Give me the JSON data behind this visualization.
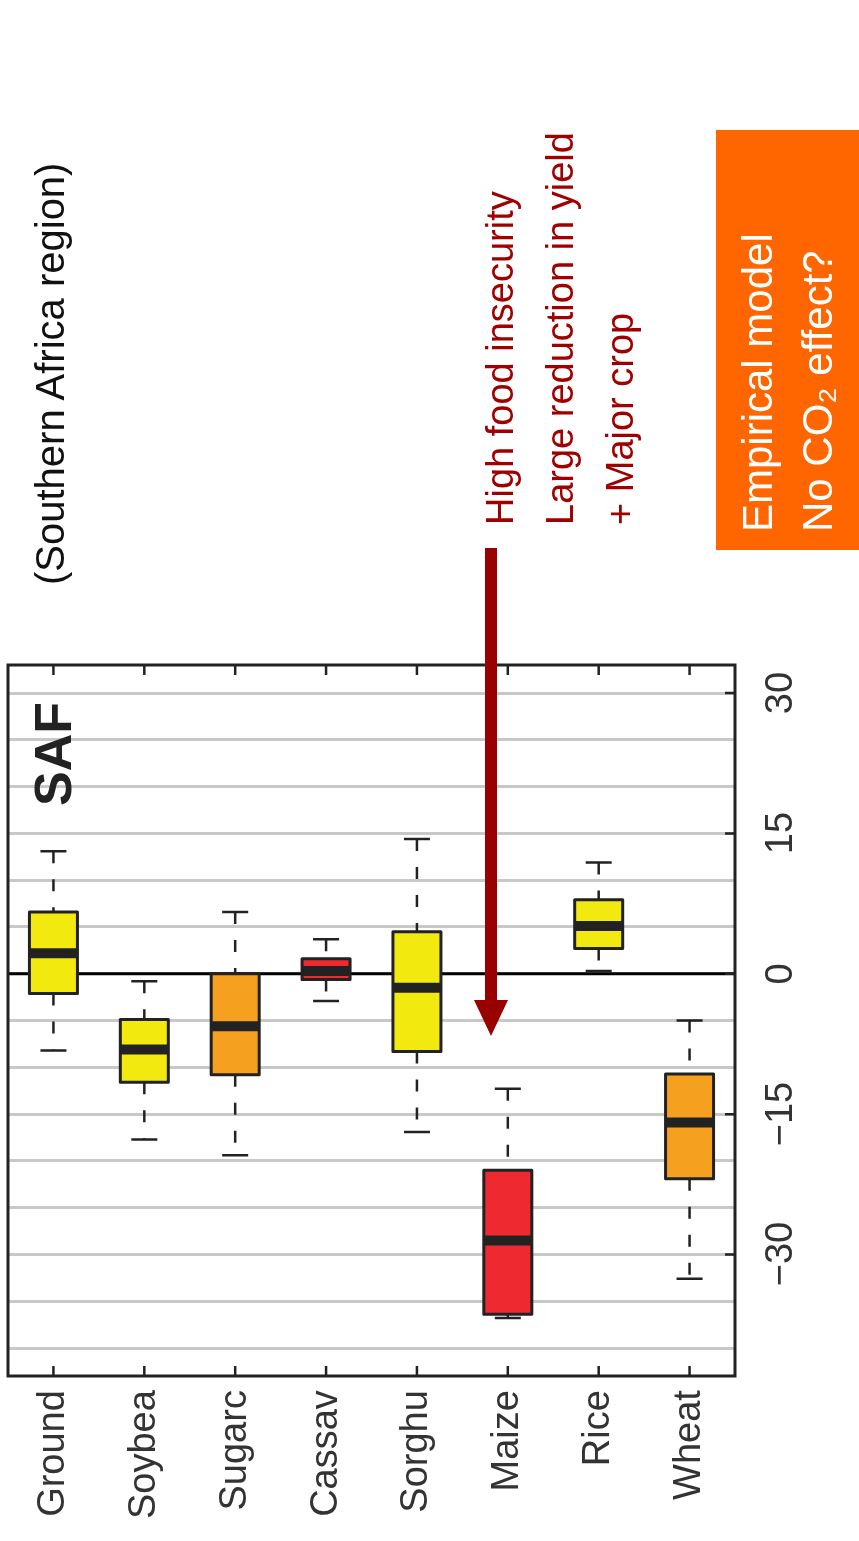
{
  "chart_data": {
    "type": "box",
    "title": "(Southern Africa region)",
    "annotations": [
      "SAF",
      "High food insecurity\nLarge reduction in yield\n+ Major crop",
      "Empirical model\nNo CO₂ effect?"
    ],
    "categories": [
      "Ground",
      "Soybea",
      "Sugarc",
      "Cassav",
      "Sorghu",
      "Maize",
      "Rice",
      "Wheat"
    ],
    "colors": [
      "#f2ea0f",
      "#f2ea0f",
      "#f5a01e",
      "#ee2a30",
      "#f2ea0f",
      "#ee2a30",
      "#f2ea0f",
      "#f5a01e"
    ],
    "boxes": [
      {
        "low": -8.2,
        "q1": -2.1,
        "median": 2.2,
        "q3": 6.6,
        "high": 13.1
      },
      {
        "low": -17.7,
        "q1": -11.6,
        "median": -8.1,
        "q3": -4.9,
        "high": -0.8
      },
      {
        "low": -19.4,
        "q1": -10.8,
        "median": -5.6,
        "q3": 0,
        "high": 6.6
      },
      {
        "low": -2.9,
        "q1": -0.6,
        "median": 0.3,
        "q3": 1.6,
        "high": 3.7
      },
      {
        "low": -16.9,
        "q1": -8.3,
        "median": -1.5,
        "q3": 4.5,
        "high": 14.4
      },
      {
        "low": -36.8,
        "q1": -36.4,
        "median": -28.5,
        "q3": -21,
        "high": -12.3
      },
      {
        "low": 0.3,
        "q1": 2.7,
        "median": 5.1,
        "q3": 7.9,
        "high": 11.9
      },
      {
        "low": -32.6,
        "q1": -21.9,
        "median": -15.9,
        "q3": -10.7,
        "high": -5
      }
    ],
    "ylim": [
      -43,
      33
    ],
    "yticks": [
      {
        "value": -40,
        "label": null
      },
      {
        "value": -35,
        "label": null
      },
      {
        "value": -30,
        "label": "−30"
      },
      {
        "value": -25,
        "label": null
      },
      {
        "value": -20,
        "label": null
      },
      {
        "value": -15,
        "label": "−15"
      },
      {
        "value": -10,
        "label": null
      },
      {
        "value": -5,
        "label": null
      },
      0,
      {
        "value": 5,
        "label": null
      },
      {
        "value": 10,
        "label": null
      },
      15,
      {
        "value": 20,
        "label": null
      },
      {
        "value": 25,
        "label": null
      },
      30
    ],
    "grid": "y",
    "ref_lines": [
      {
        "axis": "y",
        "value": 0,
        "color": "#000000"
      }
    ]
  }
}
